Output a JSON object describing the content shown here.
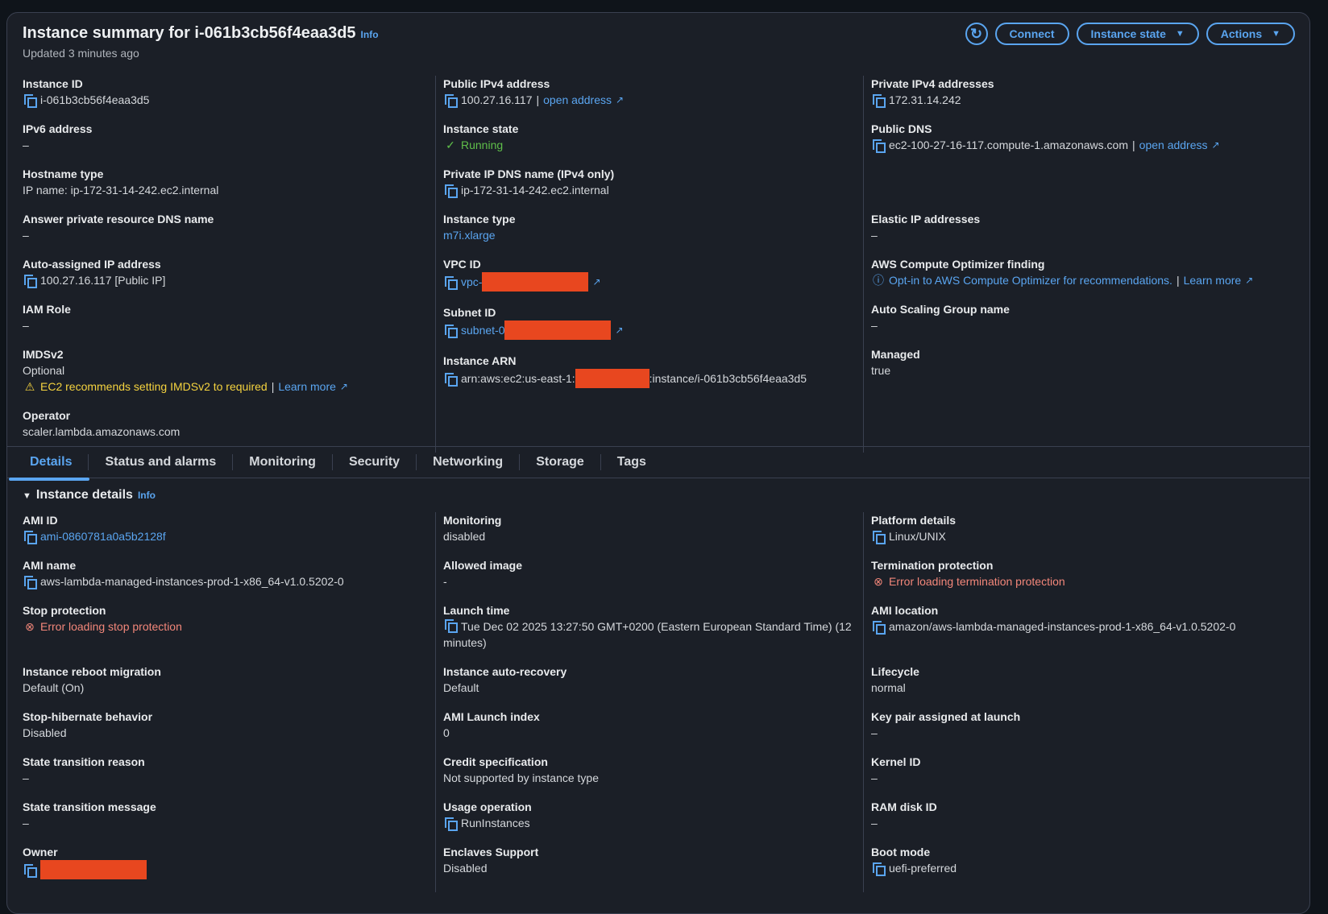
{
  "header": {
    "title": "Instance summary for i-061b3cb56f4eaa3d5",
    "info": "Info",
    "updated": "Updated 3 minutes ago",
    "buttons": {
      "refresh_icon": "refresh-icon",
      "connect": "Connect",
      "instance_state": "Instance state",
      "actions": "Actions"
    }
  },
  "colors": {
    "accent": "#5aa5f0",
    "success": "#5fbf4a",
    "error": "#f3877a",
    "warning": "#f5d33f",
    "redaction": "#e8471f"
  },
  "summary": [
    [
      {
        "label": "Instance ID",
        "lines": [
          {
            "copy": true,
            "segments": [
              {
                "text": "i-061b3cb56f4eaa3d5",
                "style": "plain"
              }
            ]
          }
        ]
      },
      {
        "label": "IPv6 address",
        "lines": [
          {
            "segments": [
              {
                "text": "–",
                "style": "plain"
              }
            ]
          }
        ]
      },
      {
        "label": "Hostname type",
        "lines": [
          {
            "segments": [
              {
                "text": "IP name: ip-172-31-14-242.ec2.internal",
                "style": "plain"
              }
            ]
          }
        ]
      },
      {
        "label": "Answer private resource DNS name",
        "lines": [
          {
            "segments": [
              {
                "text": "–",
                "style": "plain"
              }
            ]
          }
        ]
      },
      {
        "label": "Auto-assigned IP address",
        "lines": [
          {
            "copy": true,
            "segments": [
              {
                "text": "100.27.16.117 [Public IP]",
                "style": "plain"
              }
            ]
          }
        ]
      },
      {
        "label": "IAM Role",
        "lines": [
          {
            "segments": [
              {
                "text": "–",
                "style": "plain"
              }
            ]
          }
        ]
      },
      {
        "label": "IMDSv2",
        "lines": [
          {
            "segments": [
              {
                "text": "Optional",
                "style": "plain"
              }
            ]
          },
          {
            "icon": "warning",
            "segments": [
              {
                "text": "EC2 recommends setting IMDSv2 to required",
                "style": "warning"
              },
              {
                "text": "|",
                "style": "sep"
              },
              {
                "text": "Learn more",
                "style": "link",
                "ext": true
              }
            ]
          }
        ]
      },
      {
        "label": "Operator",
        "lines": [
          {
            "segments": [
              {
                "text": "scaler.lambda.amazonaws.com",
                "style": "plain"
              }
            ]
          }
        ]
      }
    ],
    [
      {
        "label": "Public IPv4 address",
        "lines": [
          {
            "copy": true,
            "segments": [
              {
                "text": "100.27.16.117",
                "style": "plain"
              },
              {
                "text": "|",
                "style": "sep"
              },
              {
                "text": "open address",
                "style": "link",
                "ext": true
              }
            ]
          }
        ]
      },
      {
        "label": "Instance state",
        "lines": [
          {
            "icon": "check-circle",
            "segments": [
              {
                "text": "Running",
                "style": "success"
              }
            ]
          }
        ]
      },
      {
        "label": "Private IP DNS name (IPv4 only)",
        "lines": [
          {
            "copy": true,
            "segments": [
              {
                "text": "ip-172-31-14-242.ec2.internal",
                "style": "plain"
              }
            ]
          }
        ]
      },
      {
        "label": "Instance type",
        "lines": [
          {
            "segments": [
              {
                "text": "m7i.xlarge",
                "style": "link"
              }
            ]
          }
        ]
      },
      {
        "label": "VPC ID",
        "lines": [
          {
            "copy": true,
            "segments": [
              {
                "text": "vpc-",
                "style": "link"
              },
              {
                "text": "",
                "style": "redacted",
                "ext": true
              }
            ]
          }
        ]
      },
      {
        "label": "Subnet ID",
        "lines": [
          {
            "copy": true,
            "segments": [
              {
                "text": "subnet-0",
                "style": "link"
              },
              {
                "text": "",
                "style": "redacted",
                "ext": true
              }
            ]
          }
        ]
      },
      {
        "label": "Instance ARN",
        "lines": [
          {
            "copy": true,
            "segments": [
              {
                "text": "arn:aws:ec2:us-east-1:",
                "style": "plain"
              },
              {
                "text": "",
                "style": "redacted-s"
              },
              {
                "text": ":instance/i-061b3cb56f4eaa3d5",
                "style": "plain"
              }
            ]
          }
        ]
      }
    ],
    [
      {
        "label": "Private IPv4 addresses",
        "lines": [
          {
            "copy": true,
            "segments": [
              {
                "text": "172.31.14.242",
                "style": "plain"
              }
            ]
          }
        ]
      },
      {
        "label": "Public DNS",
        "lines": [
          {
            "copy": true,
            "segments": [
              {
                "text": "ec2-100-27-16-117.compute-1.amazonaws.com",
                "style": "plain"
              },
              {
                "text": "|",
                "style": "sep"
              },
              {
                "text": "open address",
                "style": "link",
                "ext": true
              }
            ]
          }
        ]
      },
      {
        "label": "",
        "lines": []
      },
      {
        "label": "Elastic IP addresses",
        "lines": [
          {
            "segments": [
              {
                "text": "–",
                "style": "plain"
              }
            ]
          }
        ]
      },
      {
        "label": "AWS Compute Optimizer finding",
        "lines": [
          {
            "icon": "info-circle",
            "segments": [
              {
                "text": "Opt-in to AWS Compute Optimizer for recommendations.",
                "style": "link"
              },
              {
                "text": "|",
                "style": "sep"
              },
              {
                "text": "Learn more",
                "style": "link",
                "ext": true
              }
            ]
          }
        ]
      },
      {
        "label": "Auto Scaling Group name",
        "lines": [
          {
            "segments": [
              {
                "text": "–",
                "style": "plain"
              }
            ]
          }
        ]
      },
      {
        "label": "Managed",
        "lines": [
          {
            "segments": [
              {
                "text": "true",
                "style": "plain"
              }
            ]
          }
        ]
      }
    ]
  ],
  "tabs": [
    {
      "label": "Details",
      "active": true
    },
    {
      "label": "Status and alarms"
    },
    {
      "label": "Monitoring"
    },
    {
      "label": "Security"
    },
    {
      "label": "Networking"
    },
    {
      "label": "Storage"
    },
    {
      "label": "Tags"
    }
  ],
  "details": {
    "title": "Instance details",
    "info": "Info",
    "rows": [
      [
        {
          "label": "AMI ID",
          "lines": [
            {
              "copy": true,
              "segments": [
                {
                  "text": "ami-0860781a0a5b2128f",
                  "style": "link"
                }
              ]
            }
          ]
        },
        {
          "label": "Monitoring",
          "lines": [
            {
              "segments": [
                {
                  "text": "disabled",
                  "style": "plain"
                }
              ]
            }
          ]
        },
        {
          "label": "Platform details",
          "lines": [
            {
              "copy": true,
              "segments": [
                {
                  "text": "Linux/UNIX",
                  "style": "plain"
                }
              ]
            }
          ]
        }
      ],
      [
        {
          "label": "AMI name",
          "lines": [
            {
              "copy": true,
              "segments": [
                {
                  "text": "aws-lambda-managed-instances-prod-1-x86_64-v1.0.5202-0",
                  "style": "plain"
                }
              ]
            }
          ]
        },
        {
          "label": "Allowed image",
          "lines": [
            {
              "segments": [
                {
                  "text": "-",
                  "style": "plain"
                }
              ]
            }
          ]
        },
        {
          "label": "Termination protection",
          "lines": [
            {
              "icon": "x-circle",
              "segments": [
                {
                  "text": "Error loading termination protection",
                  "style": "error"
                }
              ]
            }
          ]
        }
      ],
      [
        {
          "label": "Stop protection",
          "lines": [
            {
              "icon": "x-circle",
              "segments": [
                {
                  "text": "Error loading stop protection",
                  "style": "error"
                }
              ]
            }
          ]
        },
        {
          "label": "Launch time",
          "lines": [
            {
              "copy": true,
              "wrap": true,
              "segments": [
                {
                  "text": "Tue Dec 02 2025 13:27:50 GMT+0200 (Eastern European Standard Time) (12 minutes)",
                  "style": "plain"
                }
              ]
            }
          ]
        },
        {
          "label": "AMI location",
          "lines": [
            {
              "copy": true,
              "segments": [
                {
                  "text": "amazon/aws-lambda-managed-instances-prod-1-x86_64-v1.0.5202-0",
                  "style": "plain"
                }
              ]
            }
          ]
        }
      ],
      [
        {
          "label": "Instance reboot migration",
          "lines": [
            {
              "segments": [
                {
                  "text": "Default (On)",
                  "style": "plain"
                }
              ]
            }
          ]
        },
        {
          "label": "Instance auto-recovery",
          "lines": [
            {
              "segments": [
                {
                  "text": "Default",
                  "style": "plain"
                }
              ]
            }
          ]
        },
        {
          "label": "Lifecycle",
          "lines": [
            {
              "segments": [
                {
                  "text": "normal",
                  "style": "plain"
                }
              ]
            }
          ]
        }
      ],
      [
        {
          "label": "Stop-hibernate behavior",
          "lines": [
            {
              "segments": [
                {
                  "text": "Disabled",
                  "style": "plain"
                }
              ]
            }
          ]
        },
        {
          "label": "AMI Launch index",
          "lines": [
            {
              "segments": [
                {
                  "text": "0",
                  "style": "plain"
                }
              ]
            }
          ]
        },
        {
          "label": "Key pair assigned at launch",
          "lines": [
            {
              "segments": [
                {
                  "text": "–",
                  "style": "plain"
                }
              ]
            }
          ]
        }
      ],
      [
        {
          "label": "State transition reason",
          "lines": [
            {
              "segments": [
                {
                  "text": "–",
                  "style": "plain"
                }
              ]
            }
          ]
        },
        {
          "label": "Credit specification",
          "lines": [
            {
              "segments": [
                {
                  "text": "Not supported by instance type",
                  "style": "plain"
                }
              ]
            }
          ]
        },
        {
          "label": "Kernel ID",
          "lines": [
            {
              "segments": [
                {
                  "text": "–",
                  "style": "plain"
                }
              ]
            }
          ]
        }
      ],
      [
        {
          "label": "State transition message",
          "lines": [
            {
              "segments": [
                {
                  "text": "–",
                  "style": "plain"
                }
              ]
            }
          ]
        },
        {
          "label": "Usage operation",
          "lines": [
            {
              "copy": true,
              "segments": [
                {
                  "text": "RunInstances",
                  "style": "plain"
                }
              ]
            }
          ]
        },
        {
          "label": "RAM disk ID",
          "lines": [
            {
              "segments": [
                {
                  "text": "–",
                  "style": "plain"
                }
              ]
            }
          ]
        }
      ],
      [
        {
          "label": "Owner",
          "lines": [
            {
              "copy": true,
              "segments": [
                {
                  "text": "",
                  "style": "redacted"
                }
              ]
            }
          ]
        },
        {
          "label": "Enclaves Support",
          "lines": [
            {
              "segments": [
                {
                  "text": "Disabled",
                  "style": "plain"
                }
              ]
            }
          ]
        },
        {
          "label": "Boot mode",
          "lines": [
            {
              "copy": true,
              "segments": [
                {
                  "text": "uefi-preferred",
                  "style": "plain"
                }
              ]
            }
          ]
        }
      ]
    ]
  }
}
